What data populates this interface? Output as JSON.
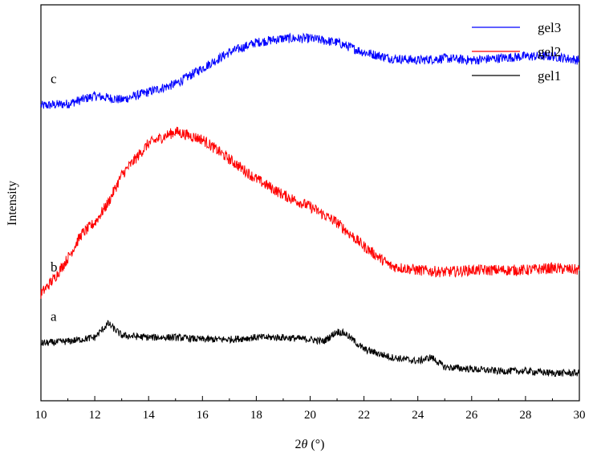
{
  "chart_data": {
    "type": "line",
    "xlabel": "2θ (°)",
    "ylabel": "Intensity",
    "xlim": [
      10,
      30
    ],
    "x_ticks": [
      "10",
      "12",
      "14",
      "16",
      "18",
      "20",
      "22",
      "24",
      "26",
      "28",
      "30"
    ],
    "y_ticks_labeled": false,
    "legend_position": "top-right",
    "legend": [
      {
        "label": "gel3",
        "color": "#0000ff"
      },
      {
        "label": "gel2",
        "color": "#ff0000"
      },
      {
        "label": "gel1",
        "color": "#000000"
      }
    ],
    "series": [
      {
        "name": "gel3",
        "curve_label": "c",
        "color": "#0000ff",
        "x": [
          10,
          11,
          12,
          13,
          14,
          15,
          16,
          17,
          18,
          19,
          20,
          21,
          22,
          23,
          24,
          25,
          26,
          27,
          28,
          29,
          30
        ],
        "y": [
          0.745,
          0.75,
          0.77,
          0.76,
          0.78,
          0.8,
          0.84,
          0.88,
          0.905,
          0.915,
          0.915,
          0.905,
          0.88,
          0.865,
          0.86,
          0.865,
          0.86,
          0.865,
          0.87,
          0.87,
          0.86
        ],
        "noise": 0.012
      },
      {
        "name": "gel2",
        "curve_label": "b",
        "color": "#ff0000",
        "x": [
          10,
          10.5,
          11,
          11.5,
          12,
          12.5,
          13,
          14,
          15,
          16,
          17,
          18,
          19,
          20,
          21,
          22,
          23,
          24,
          25,
          26,
          27,
          28,
          29,
          30
        ],
        "y": [
          0.27,
          0.31,
          0.36,
          0.42,
          0.45,
          0.5,
          0.57,
          0.65,
          0.68,
          0.66,
          0.61,
          0.56,
          0.52,
          0.49,
          0.45,
          0.39,
          0.34,
          0.33,
          0.325,
          0.33,
          0.33,
          0.33,
          0.335,
          0.33
        ],
        "noise": 0.014
      },
      {
        "name": "gel1",
        "curve_label": "a",
        "color": "#000000",
        "x": [
          10,
          11,
          12,
          12.5,
          13,
          14,
          15,
          16,
          17,
          18,
          19,
          20,
          20.5,
          21,
          21.3,
          22,
          23,
          24,
          24.5,
          25,
          26,
          27,
          28,
          29,
          30
        ],
        "y": [
          0.145,
          0.15,
          0.16,
          0.195,
          0.165,
          0.16,
          0.16,
          0.155,
          0.155,
          0.16,
          0.16,
          0.155,
          0.15,
          0.175,
          0.17,
          0.13,
          0.11,
          0.1,
          0.11,
          0.085,
          0.08,
          0.075,
          0.075,
          0.07,
          0.07
        ],
        "noise": 0.009
      }
    ]
  }
}
